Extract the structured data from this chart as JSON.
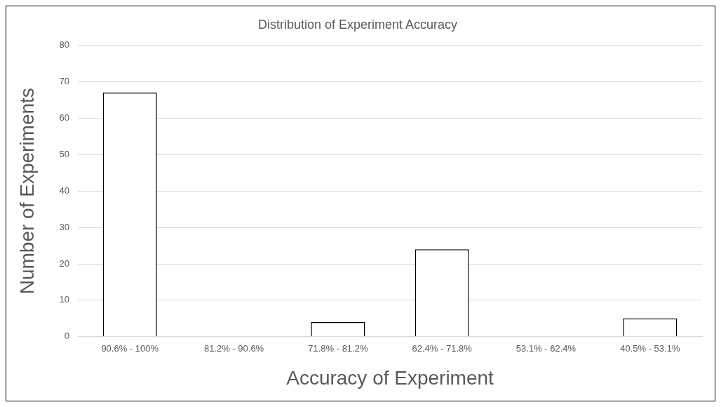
{
  "chart_data": {
    "type": "bar",
    "title": "Distribution of Experiment Accuracy",
    "xlabel": "Accuracy of Experiment",
    "ylabel": "Number of Experiments",
    "categories": [
      "90.6% - 100%",
      "81.2% - 90.6%",
      "71.8% - 81.2%",
      "62.4% - 71.8%",
      "53.1% - 62.4%",
      "40.5% - 53.1%"
    ],
    "values": [
      67,
      0,
      4,
      24,
      0,
      5
    ],
    "color": "#ffffff",
    "ylim": [
      0,
      80
    ],
    "yticks": [
      0,
      10,
      20,
      30,
      40,
      50,
      60,
      70,
      80
    ],
    "grid": "y",
    "legend": false
  }
}
